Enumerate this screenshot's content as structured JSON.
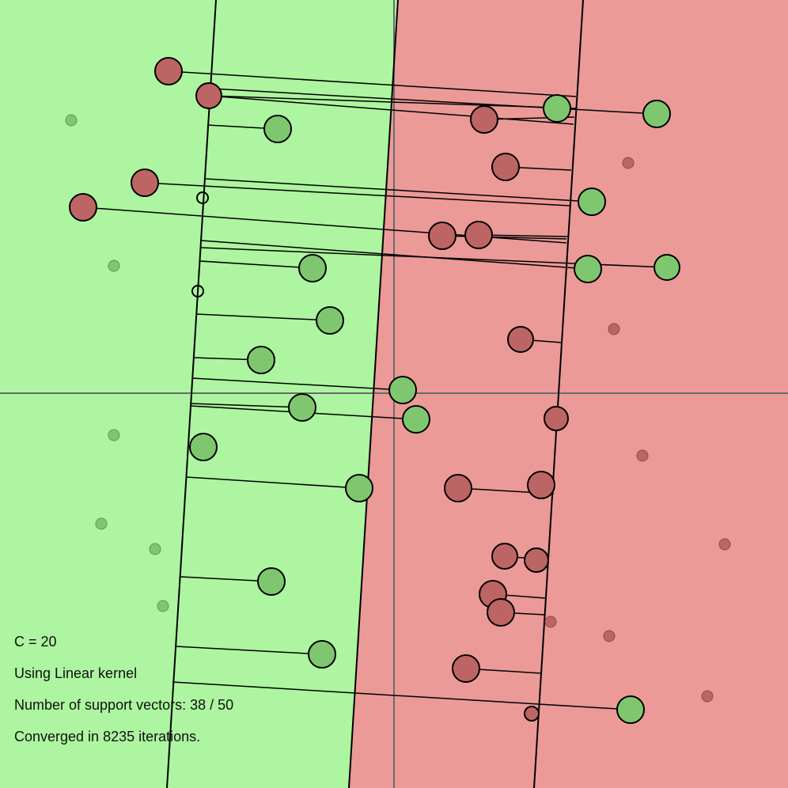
{
  "colors": {
    "class_positive_region": "#adf5a0",
    "class_negative_region": "#eb9a98",
    "class_positive_point": "#7fc76f",
    "class_negative_point": "#bd6564",
    "axis": "#6a6a6a",
    "line": "#000000"
  },
  "info": {
    "c_text": "C = 20",
    "kernel_text": "Using Linear kernel",
    "sv_text": "Number of support vectors: 38 / 50",
    "iter_text": "Converged in 8235 iterations."
  },
  "svm": {
    "C": 20,
    "kernel": "Linear",
    "support_vectors": 38,
    "total_points": 50,
    "iterations": 8235
  }
}
